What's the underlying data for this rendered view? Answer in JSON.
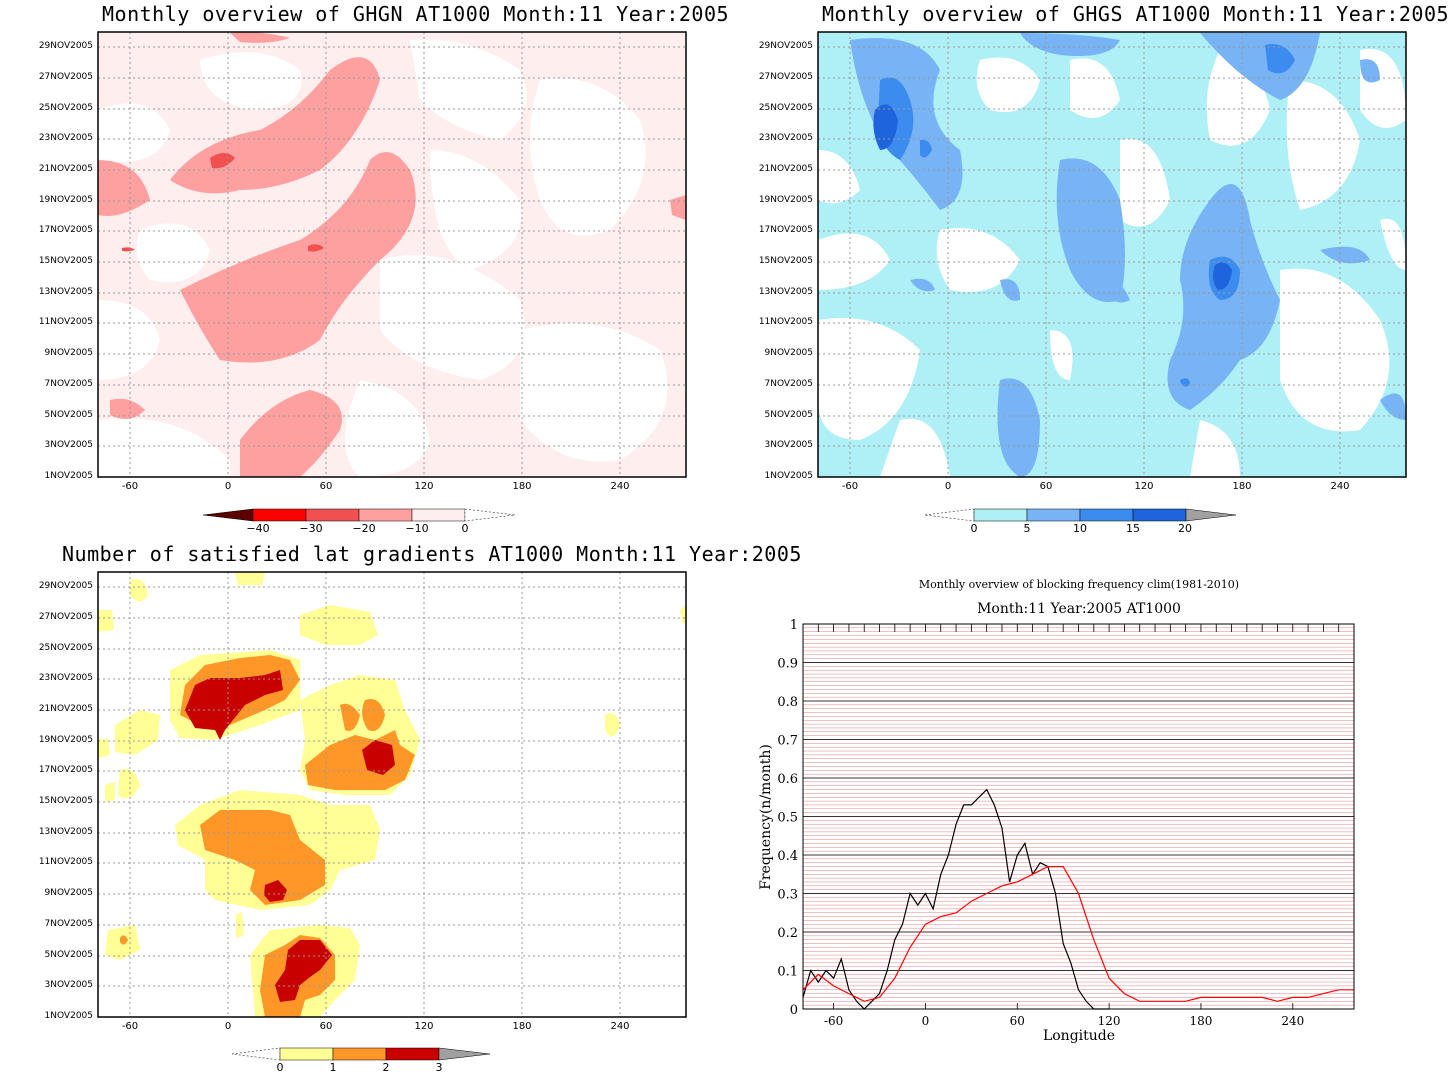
{
  "panels": {
    "ghgn": {
      "title": "Monthly overview of GHGN AT1000 Month:11 Year:2005",
      "colorbar_ticks": [
        "−40",
        "−30",
        "−20",
        "−10",
        "0"
      ],
      "colors": [
        "#5c0000",
        "#ff0000",
        "#f05050",
        "#ffa0a0",
        "#ffeeee"
      ]
    },
    "ghgs": {
      "title": "Monthly overview of GHGS AT1000 Month:11 Year:2005",
      "colorbar_ticks": [
        "0",
        "5",
        "10",
        "15",
        "20"
      ],
      "colors": [
        "#aef0f5",
        "#78b4f5",
        "#3c8cf0",
        "#1e64dc",
        "#a0a0a0"
      ]
    },
    "lat": {
      "title": "Number of satisfied lat gradients AT1000 Month:11 Year:2005",
      "colorbar_ticks": [
        "0",
        "1",
        "2",
        "3"
      ],
      "colors": [
        "#ffff96",
        "#ff9628",
        "#c80000",
        "#a0a0a0"
      ]
    },
    "blocking": {
      "title": "Monthly overview of blocking frequency clim(1981-2010)",
      "subtitle": "Month:11 Year:2005  AT1000"
    }
  },
  "axes": {
    "y_dates": [
      "29NOV2005",
      "27NOV2005",
      "25NOV2005",
      "23NOV2005",
      "21NOV2005",
      "19NOV2005",
      "17NOV2005",
      "15NOV2005",
      "13NOV2005",
      "11NOV2005",
      "9NOV2005",
      "7NOV2005",
      "5NOV2005",
      "3NOV2005",
      "1NOV2005"
    ],
    "x_lon": [
      "-60",
      "0",
      "60",
      "120",
      "180",
      "240"
    ]
  },
  "chart_data": [
    {
      "type": "heatmap",
      "title": "Monthly overview of GHGN AT1000 Month:11 Year:2005",
      "x_ticks": [
        -60,
        0,
        60,
        120,
        180,
        240
      ],
      "xlim": [
        -80,
        280
      ],
      "y_ticks": [
        "1NOV2005",
        "3NOV2005",
        "5NOV2005",
        "7NOV2005",
        "9NOV2005",
        "11NOV2005",
        "13NOV2005",
        "15NOV2005",
        "17NOV2005",
        "19NOV2005",
        "21NOV2005",
        "23NOV2005",
        "25NOV2005",
        "27NOV2005",
        "29NOV2005"
      ],
      "colorbar": [
        -40,
        -30,
        -20,
        -10,
        0
      ],
      "grid": true
    },
    {
      "type": "heatmap",
      "title": "Monthly overview of GHGS AT1000 Month:11 Year:2005",
      "x_ticks": [
        -60,
        0,
        60,
        120,
        180,
        240
      ],
      "xlim": [
        -80,
        280
      ],
      "colorbar": [
        0,
        5,
        10,
        15,
        20
      ],
      "grid": true
    },
    {
      "type": "heatmap",
      "title": "Number of satisfied lat gradients AT1000 Month:11 Year:2005",
      "x_ticks": [
        -60,
        0,
        60,
        120,
        180,
        240
      ],
      "xlim": [
        -80,
        280
      ],
      "colorbar": [
        0,
        1,
        2,
        3
      ],
      "grid": true
    },
    {
      "type": "line",
      "title": "Monthly overview of blocking frequency clim(1981-2010)",
      "subtitle": "Month:11 Year:2005  AT1000",
      "xlabel": "Longitude",
      "ylabel": "Frequency(n/month)",
      "xlim": [
        -80,
        280
      ],
      "ylim": [
        0,
        1
      ],
      "x_ticks": [
        -60,
        0,
        60,
        120,
        180,
        240
      ],
      "y_ticks": [
        0,
        0.1,
        0.2,
        0.3,
        0.4,
        0.5,
        0.6,
        0.7,
        0.8,
        0.9,
        1
      ],
      "y_tick_labels": [
        "0",
        "0.1",
        "0.2",
        "0.3",
        "0.4",
        "0.5",
        "0.6",
        "0.7",
        "0.8",
        "0.9",
        "1"
      ],
      "series": [
        {
          "color": "#000000",
          "x": [
            -80,
            -75,
            -70,
            -65,
            -60,
            -55,
            -50,
            -45,
            -40,
            -35,
            -30,
            -25,
            -20,
            -15,
            -10,
            -5,
            0,
            5,
            10,
            15,
            20,
            25,
            30,
            35,
            40,
            45,
            50,
            55,
            60,
            65,
            70,
            75,
            80,
            85,
            90,
            95,
            100,
            105,
            110,
            115,
            120
          ],
          "values": [
            0.03,
            0.1,
            0.07,
            0.1,
            0.08,
            0.13,
            0.05,
            0.02,
            0.0,
            0.02,
            0.04,
            0.1,
            0.18,
            0.22,
            0.3,
            0.27,
            0.3,
            0.26,
            0.35,
            0.4,
            0.48,
            0.53,
            0.53,
            0.55,
            0.57,
            0.53,
            0.47,
            0.33,
            0.4,
            0.43,
            0.35,
            0.38,
            0.37,
            0.3,
            0.17,
            0.12,
            0.05,
            0.02,
            0.0,
            0.0,
            0.0
          ]
        },
        {
          "color": "#ff0000",
          "x": [
            -80,
            -70,
            -60,
            -50,
            -40,
            -30,
            -20,
            -10,
            0,
            10,
            20,
            30,
            40,
            50,
            60,
            70,
            80,
            90,
            100,
            110,
            120,
            130,
            140,
            150,
            160,
            170,
            180,
            190,
            200,
            210,
            220,
            230,
            240,
            250,
            260,
            270,
            280
          ],
          "values": [
            0.05,
            0.09,
            0.06,
            0.04,
            0.02,
            0.03,
            0.08,
            0.16,
            0.22,
            0.24,
            0.25,
            0.28,
            0.3,
            0.32,
            0.33,
            0.35,
            0.37,
            0.37,
            0.3,
            0.18,
            0.08,
            0.04,
            0.02,
            0.02,
            0.02,
            0.02,
            0.03,
            0.03,
            0.03,
            0.03,
            0.03,
            0.02,
            0.03,
            0.03,
            0.04,
            0.05,
            0.05
          ]
        }
      ]
    }
  ]
}
